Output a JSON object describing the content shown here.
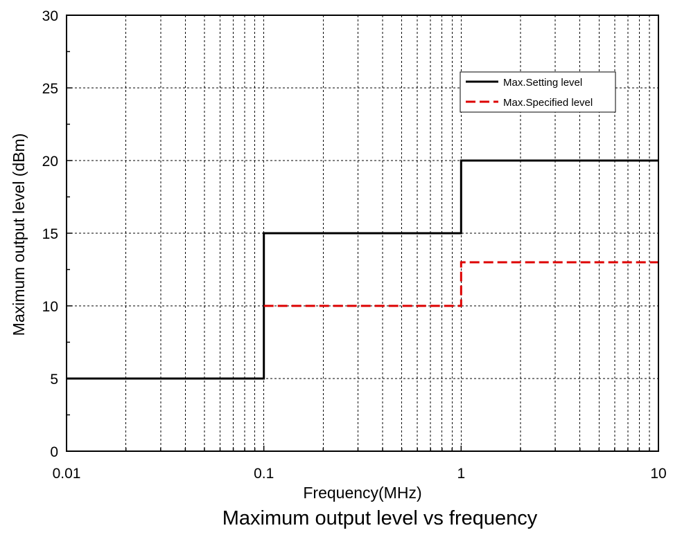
{
  "chart_data": {
    "type": "line",
    "step": true,
    "title": "Maximum output level vs frequency",
    "xlabel": "Frequency(MHz)",
    "ylabel": "Maximum output level (dBm)",
    "xscale": "log",
    "xlim": [
      0.01,
      10
    ],
    "ylim": [
      0,
      30
    ],
    "xticks": [
      0.01,
      0.1,
      1,
      10
    ],
    "xtick_labels": [
      "0.01",
      "0.1",
      "1",
      "10"
    ],
    "yticks": [
      0,
      5,
      10,
      15,
      20,
      25,
      30
    ],
    "ytick_labels": [
      "0",
      "5",
      "10",
      "15",
      "20",
      "25",
      "30"
    ],
    "grid": true,
    "legend_position": "top-right",
    "series": [
      {
        "name": "Max.Setting level",
        "color": "#000000",
        "style": "solid",
        "x": [
          0.01,
          0.1,
          0.1,
          1,
          1,
          10
        ],
        "y": [
          5,
          5,
          15,
          15,
          20,
          20
        ]
      },
      {
        "name": "Max.Specified level",
        "color": "#dd0000",
        "style": "dashed",
        "x": [
          0.1,
          1,
          1,
          10
        ],
        "y": [
          10,
          10,
          13,
          13
        ]
      }
    ]
  }
}
